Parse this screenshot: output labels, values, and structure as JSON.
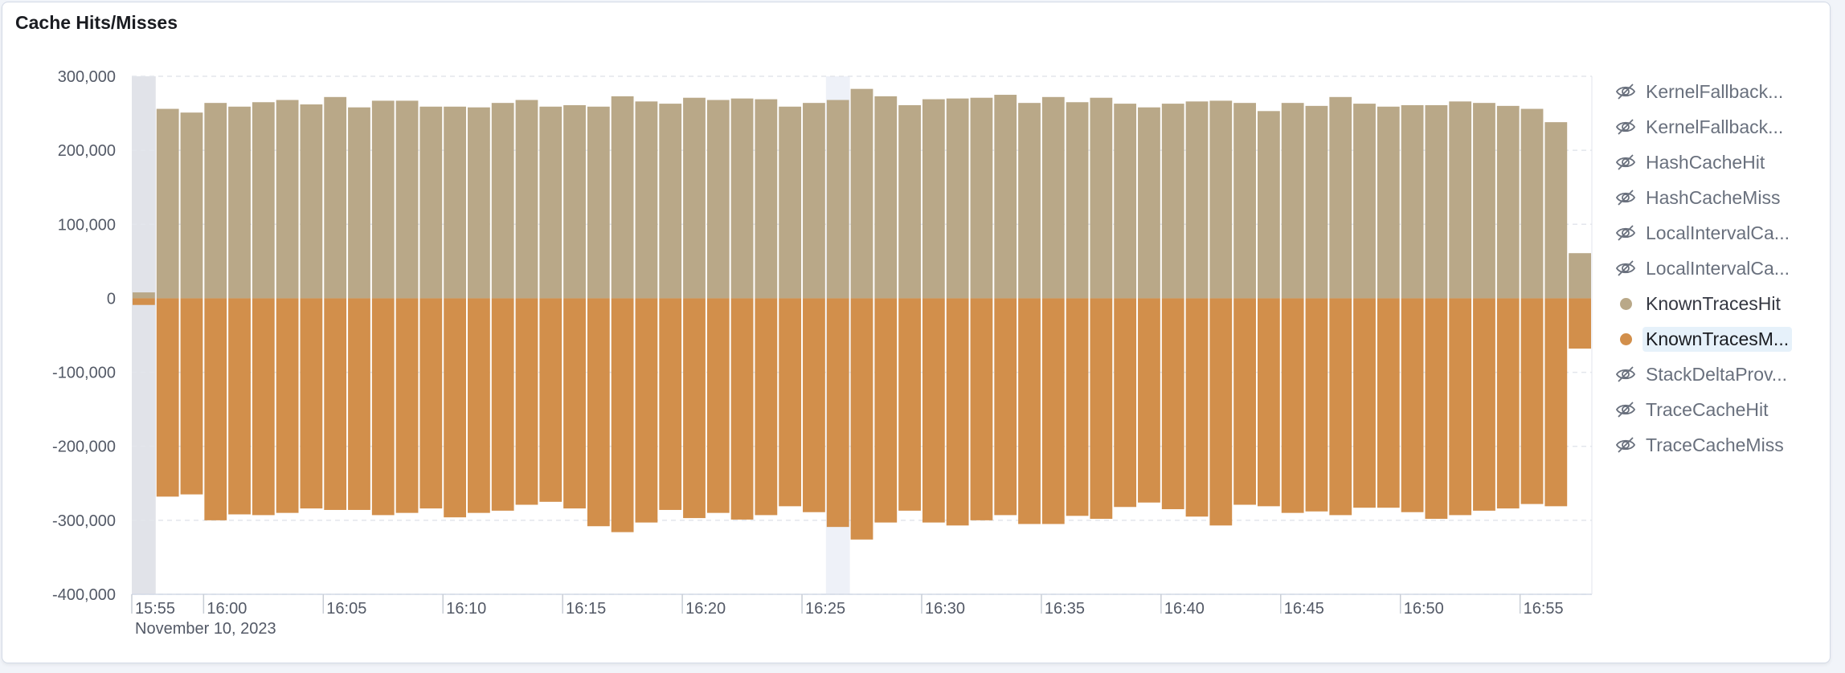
{
  "panel": {
    "title": "Cache Hits/Misses"
  },
  "chart_data": {
    "type": "bar",
    "stacked": true,
    "title": "Cache Hits/Misses",
    "xlabel": "",
    "ylabel": "",
    "ylim": [
      -400000,
      300000
    ],
    "yticks": [
      300000,
      200000,
      100000,
      0,
      -100000,
      -200000,
      -300000,
      -400000
    ],
    "ytick_labels": [
      "300,000",
      "200,000",
      "100,000",
      "0",
      "-100,000",
      "-200,000",
      "-300,000",
      "-400,000"
    ],
    "xticks": [
      "15:55",
      "16:00",
      "16:05",
      "16:10",
      "16:15",
      "16:20",
      "16:25",
      "16:30",
      "16:35",
      "16:40",
      "16:45",
      "16:50",
      "16:55"
    ],
    "xtick_sublabel": "November 10, 2023",
    "grid": true,
    "legend_position": "right",
    "highlighted_bars": [
      0,
      29
    ],
    "series": [
      {
        "name": "KnownTracesHit",
        "color": "#b9a888",
        "values": [
          8000,
          256000,
          251000,
          264000,
          259000,
          265000,
          268000,
          262000,
          272000,
          258000,
          267000,
          267000,
          259000,
          259000,
          258000,
          264000,
          268000,
          259000,
          261000,
          259000,
          273000,
          266000,
          263000,
          271000,
          268000,
          270000,
          269000,
          259000,
          264000,
          268000,
          283000,
          273000,
          261000,
          269000,
          270000,
          271000,
          275000,
          264000,
          272000,
          265000,
          271000,
          263000,
          258000,
          263000,
          266000,
          267000,
          264000,
          253000,
          264000,
          260000,
          272000,
          263000,
          259000,
          261000,
          261000,
          266000,
          264000,
          260000,
          256000,
          238000,
          61000
        ]
      },
      {
        "name": "KnownTracesMiss",
        "color": "#d28f4b",
        "values": [
          -9000,
          -268000,
          -265000,
          -300000,
          -292000,
          -293000,
          -290000,
          -284000,
          -286000,
          -286000,
          -293000,
          -290000,
          -284000,
          -296000,
          -290000,
          -287000,
          -279000,
          -275000,
          -284000,
          -308000,
          -316000,
          -303000,
          -286000,
          -297000,
          -290000,
          -299000,
          -293000,
          -281000,
          -289000,
          -309000,
          -326000,
          -303000,
          -287000,
          -303000,
          -307000,
          -300000,
          -293000,
          -305000,
          -305000,
          -294000,
          -298000,
          -282000,
          -276000,
          -285000,
          -295000,
          -307000,
          -279000,
          -281000,
          -290000,
          -288000,
          -293000,
          -283000,
          -283000,
          -289000,
          -298000,
          -293000,
          -287000,
          -284000,
          -278000,
          -281000,
          -68000
        ]
      }
    ]
  },
  "legend": {
    "items": [
      {
        "label": "KernelFallback...",
        "state": "hidden",
        "icon": "eye-closed-icon"
      },
      {
        "label": "KernelFallback...",
        "state": "hidden",
        "icon": "eye-closed-icon"
      },
      {
        "label": "HashCacheHit",
        "state": "hidden",
        "icon": "eye-closed-icon"
      },
      {
        "label": "HashCacheMiss",
        "state": "hidden",
        "icon": "eye-closed-icon"
      },
      {
        "label": "LocalIntervalCa...",
        "state": "hidden",
        "icon": "eye-closed-icon"
      },
      {
        "label": "LocalIntervalCa...",
        "state": "hidden",
        "icon": "eye-closed-icon"
      },
      {
        "label": "KnownTracesHit",
        "state": "visible",
        "color": "#b9a888"
      },
      {
        "label": "KnownTracesM...",
        "state": "selected",
        "color": "#d28f4b"
      },
      {
        "label": "StackDeltaProv...",
        "state": "hidden",
        "icon": "eye-closed-icon"
      },
      {
        "label": "TraceCacheHit",
        "state": "hidden",
        "icon": "eye-closed-icon"
      },
      {
        "label": "TraceCacheMiss",
        "state": "hidden",
        "icon": "eye-closed-icon"
      }
    ]
  }
}
